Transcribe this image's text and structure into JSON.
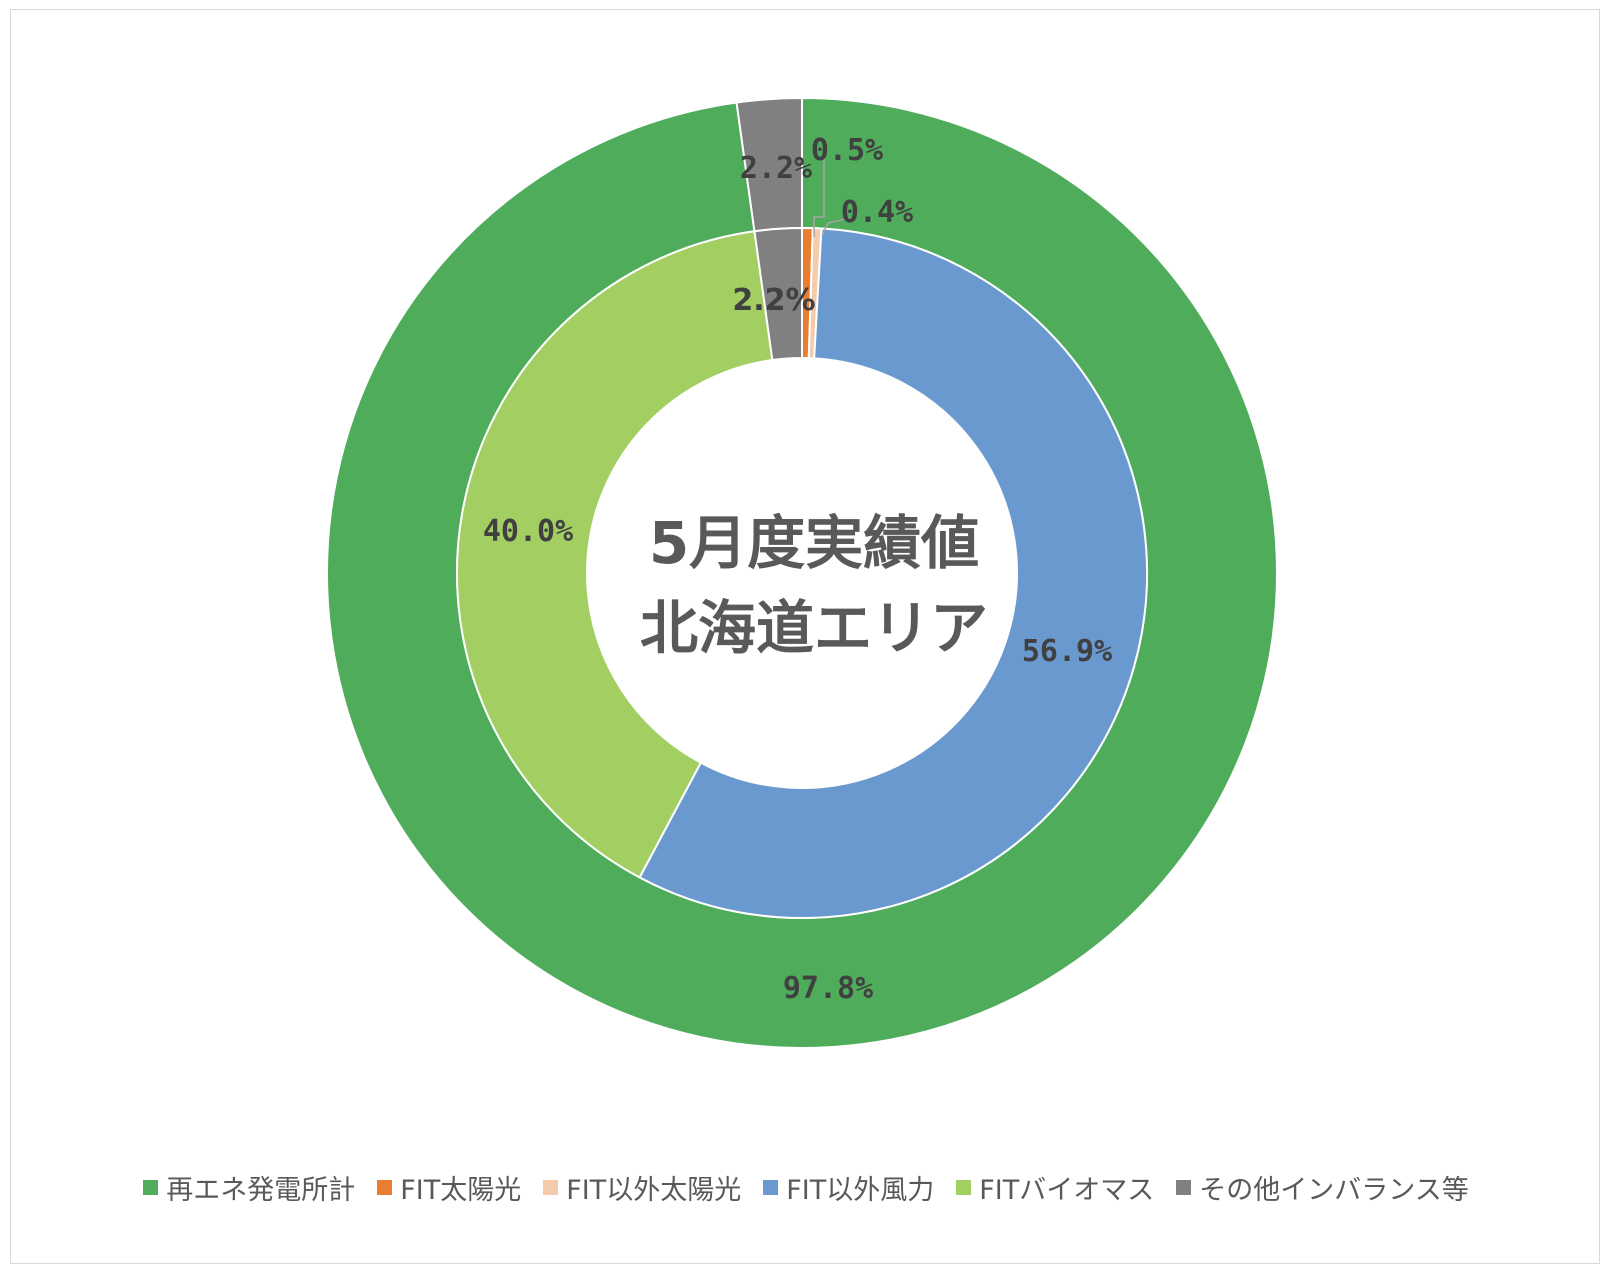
{
  "chart_data": {
    "type": "donut",
    "center_title": [
      "5月度実績値",
      "北海道エリア"
    ],
    "rings": [
      {
        "name": "outer",
        "slices": [
          {
            "label": "再エネ発電所計",
            "value": 97.8,
            "label_text": "97.8%",
            "color": "#4EAC5B"
          },
          {
            "label": "その他インバランス等",
            "value": 2.2,
            "label_text": "2.2%",
            "color": "#808080"
          }
        ]
      },
      {
        "name": "inner",
        "slices": [
          {
            "label": "FIT太陽光",
            "value": 0.5,
            "label_text": "0.5%",
            "color": "#E97E31"
          },
          {
            "label": "FIT以外太陽光",
            "value": 0.4,
            "label_text": "0.4%",
            "color": "#F5CBAE"
          },
          {
            "label": "FIT以外風力",
            "value": 56.9,
            "label_text": "56.9%",
            "color": "#6A99D0"
          },
          {
            "label": "FITバイオマス",
            "value": 40.0,
            "label_text": "40.0%",
            "color": "#A2CE62"
          },
          {
            "label": "その他インバランス等",
            "value": 2.2,
            "label_text": "2.2%",
            "color": "#808080"
          }
        ]
      }
    ],
    "legend": [
      {
        "label": "再エネ発電所計",
        "color": "#4EAC5B"
      },
      {
        "label": "FIT太陽光",
        "color": "#E97E31"
      },
      {
        "label": "FIT以外太陽光",
        "color": "#F5CBAE"
      },
      {
        "label": "FIT以外風力",
        "color": "#6A99D0"
      },
      {
        "label": "FITバイオマス",
        "color": "#A2CE62"
      },
      {
        "label": "その他インバランス等",
        "color": "#808080"
      }
    ],
    "legend_position": "bottom"
  }
}
